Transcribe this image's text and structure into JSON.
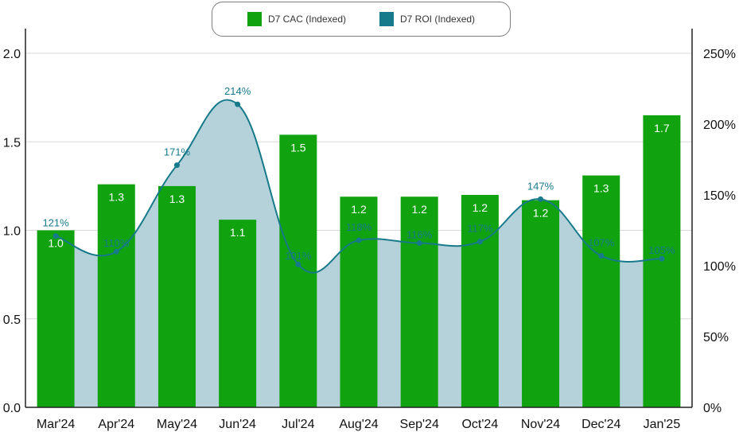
{
  "chart_data": {
    "type": "bar",
    "title": "",
    "xlabel": "",
    "ylabel": "",
    "categories": [
      "Mar'24",
      "Apr'24",
      "May'24",
      "Jun'24",
      "Jul'24",
      "Aug'24",
      "Sep'24",
      "Oct'24",
      "Nov'24",
      "Dec'24",
      "Jan'25"
    ],
    "series": [
      {
        "name": "D7 CAC (Indexed)",
        "type": "bar",
        "axis": "left",
        "color": "#10a20f",
        "values": [
          1.0,
          1.26,
          1.25,
          1.06,
          1.54,
          1.19,
          1.19,
          1.2,
          1.17,
          1.31,
          1.65
        ],
        "labels": [
          "1.0",
          "1.3",
          "1.3",
          "1.1",
          "1.5",
          "1.2",
          "1.2",
          "1.2",
          "1.2",
          "1.3",
          "1.7"
        ]
      },
      {
        "name": "D7 ROI (Indexed)",
        "type": "area",
        "axis": "right",
        "color": "#177a8a",
        "fill": "#b5d2db",
        "values": [
          121,
          110,
          171,
          214,
          101,
          118,
          116,
          117,
          147,
          107,
          105
        ],
        "labels": [
          "121%",
          "110%",
          "171%",
          "214%",
          "101%",
          "118%",
          "116%",
          "117%",
          "147%",
          "107%",
          "105%"
        ]
      }
    ],
    "y_left": {
      "lim": [
        0,
        2.0
      ],
      "ticks": [
        "0.0",
        "0.5",
        "1.0",
        "1.5",
        "2.0"
      ],
      "tick_values": [
        0,
        0.5,
        1.0,
        1.5,
        2.0
      ]
    },
    "y_right": {
      "lim": [
        0,
        250
      ],
      "ticks": [
        "0%",
        "50%",
        "100%",
        "150%",
        "200%",
        "250%"
      ],
      "tick_values": [
        0,
        50,
        100,
        150,
        200,
        250
      ]
    },
    "grid": true,
    "legend_position": "top-center"
  }
}
